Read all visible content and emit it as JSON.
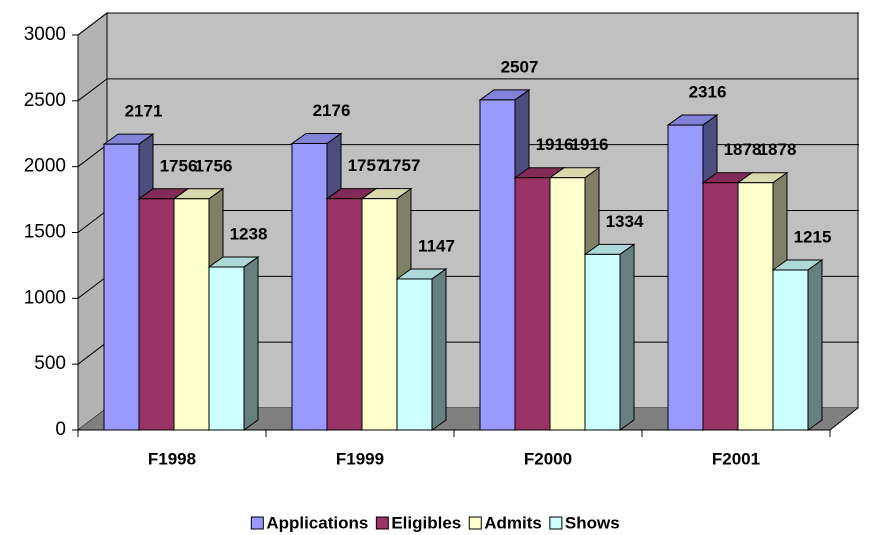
{
  "chart_data": {
    "type": "bar3d",
    "categories": [
      "F1998",
      "F1999",
      "F2000",
      "F2001"
    ],
    "series": [
      {
        "name": "Applications",
        "color": "#9999FF",
        "values": [
          2171,
          2176,
          2507,
          2316
        ]
      },
      {
        "name": "Eligibles",
        "color": "#993366",
        "values": [
          1756,
          1757,
          1916,
          1878
        ]
      },
      {
        "name": "Admits",
        "color": "#FFFFCC",
        "values": [
          1756,
          1757,
          1916,
          1878
        ]
      },
      {
        "name": "Shows",
        "color": "#CCFFFF",
        "values": [
          1238,
          1147,
          1334,
          1215
        ]
      }
    ],
    "ylim": [
      0,
      3000
    ],
    "yticks": [
      0,
      500,
      1000,
      1500,
      2000,
      2500,
      3000
    ],
    "grid": true,
    "legend": "bottom",
    "data_labels": true
  }
}
